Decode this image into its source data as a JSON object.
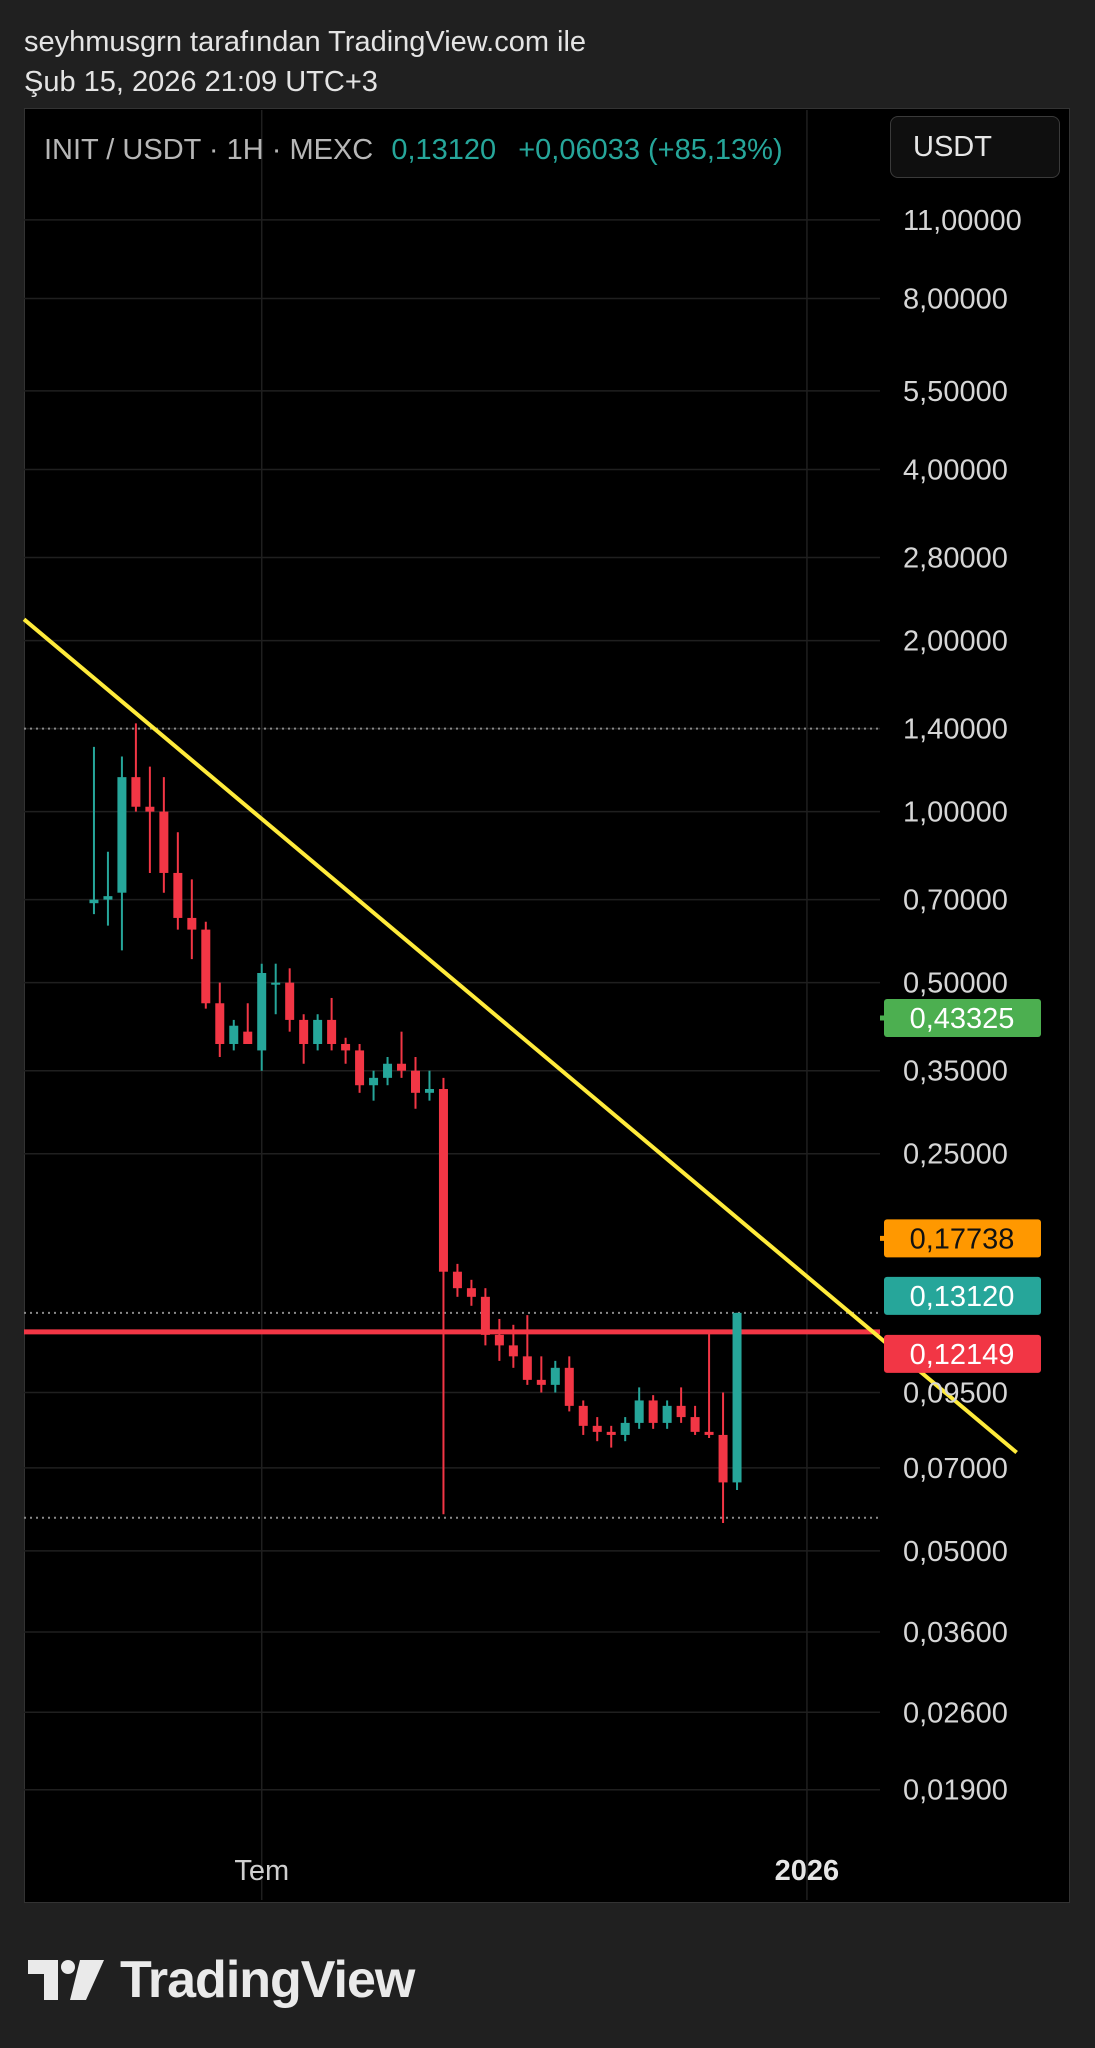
{
  "header": {
    "attribution": "seyhmusgrn tarafından TradingView.com ile",
    "datetime": "Şub 15, 2026 21:09 UTC+3"
  },
  "symbol_bar": {
    "symbol": "INIT / USDT · 1H · MEXC",
    "last_price": "0,13120",
    "change": "+0,06033 (+85,13%)"
  },
  "currency_button": "USDT",
  "footer": {
    "brand": "TradingView"
  },
  "colors": {
    "up": "#26a69a",
    "down": "#f23645",
    "trendline": "#ffeb3b",
    "target_green": "#4caf50",
    "target_orange": "#ff9800",
    "support_red": "#f23645",
    "background": "#000000",
    "grid": "#1f1f1f"
  },
  "chart_data": {
    "type": "candlestick",
    "y_scale": "log",
    "ylim": [
      0.0175,
      14.6
    ],
    "y_ticks": [
      "11,00000",
      "8,00000",
      "5,50000",
      "4,00000",
      "2,80000",
      "2,00000",
      "1,40000",
      "1,00000",
      "0,70000",
      "0,50000",
      "0,35000",
      "0,25000",
      "0,09500",
      "0,07000",
      "0,05000",
      "0,03600",
      "0,02600",
      "0,01900"
    ],
    "x_labels": [
      {
        "text": "Tem",
        "index": 14
      },
      {
        "text": "2026",
        "index": 53
      }
    ],
    "candles": [
      {
        "o": 0.69,
        "h": 1.3,
        "l": 0.66,
        "c": 0.7
      },
      {
        "o": 0.7,
        "h": 0.85,
        "l": 0.63,
        "c": 0.71
      },
      {
        "o": 0.72,
        "h": 1.25,
        "l": 0.57,
        "c": 1.15
      },
      {
        "o": 1.15,
        "h": 1.43,
        "l": 1.0,
        "c": 1.02
      },
      {
        "o": 1.02,
        "h": 1.2,
        "l": 0.78,
        "c": 1.0
      },
      {
        "o": 1.0,
        "h": 1.15,
        "l": 0.72,
        "c": 0.78
      },
      {
        "o": 0.78,
        "h": 0.92,
        "l": 0.62,
        "c": 0.65
      },
      {
        "o": 0.65,
        "h": 0.76,
        "l": 0.55,
        "c": 0.62
      },
      {
        "o": 0.62,
        "h": 0.64,
        "l": 0.45,
        "c": 0.46
      },
      {
        "o": 0.46,
        "h": 0.5,
        "l": 0.37,
        "c": 0.39
      },
      {
        "o": 0.39,
        "h": 0.43,
        "l": 0.38,
        "c": 0.42
      },
      {
        "o": 0.41,
        "h": 0.46,
        "l": 0.39,
        "c": 0.39
      },
      {
        "o": 0.38,
        "h": 0.54,
        "l": 0.35,
        "c": 0.52
      },
      {
        "o": 0.5,
        "h": 0.54,
        "l": 0.44,
        "c": 0.5
      },
      {
        "o": 0.5,
        "h": 0.53,
        "l": 0.41,
        "c": 0.43
      },
      {
        "o": 0.43,
        "h": 0.44,
        "l": 0.36,
        "c": 0.39
      },
      {
        "o": 0.39,
        "h": 0.44,
        "l": 0.38,
        "c": 0.43
      },
      {
        "o": 0.43,
        "h": 0.47,
        "l": 0.38,
        "c": 0.39
      },
      {
        "o": 0.39,
        "h": 0.4,
        "l": 0.36,
        "c": 0.38
      },
      {
        "o": 0.38,
        "h": 0.39,
        "l": 0.32,
        "c": 0.33
      },
      {
        "o": 0.33,
        "h": 0.35,
        "l": 0.31,
        "c": 0.34
      },
      {
        "o": 0.34,
        "h": 0.37,
        "l": 0.33,
        "c": 0.36
      },
      {
        "o": 0.36,
        "h": 0.41,
        "l": 0.34,
        "c": 0.35
      },
      {
        "o": 0.35,
        "h": 0.37,
        "l": 0.3,
        "c": 0.32
      },
      {
        "o": 0.32,
        "h": 0.35,
        "l": 0.31,
        "c": 0.325
      },
      {
        "o": 0.325,
        "h": 0.34,
        "l": 0.058,
        "c": 0.155
      },
      {
        "o": 0.155,
        "h": 0.16,
        "l": 0.14,
        "c": 0.145
      },
      {
        "o": 0.145,
        "h": 0.15,
        "l": 0.135,
        "c": 0.14
      },
      {
        "o": 0.14,
        "h": 0.145,
        "l": 0.115,
        "c": 0.12
      },
      {
        "o": 0.12,
        "h": 0.128,
        "l": 0.108,
        "c": 0.115
      },
      {
        "o": 0.115,
        "h": 0.125,
        "l": 0.105,
        "c": 0.11
      },
      {
        "o": 0.11,
        "h": 0.13,
        "l": 0.098,
        "c": 0.1
      },
      {
        "o": 0.1,
        "h": 0.11,
        "l": 0.095,
        "c": 0.098
      },
      {
        "o": 0.098,
        "h": 0.108,
        "l": 0.095,
        "c": 0.105
      },
      {
        "o": 0.105,
        "h": 0.11,
        "l": 0.088,
        "c": 0.09
      },
      {
        "o": 0.09,
        "h": 0.092,
        "l": 0.08,
        "c": 0.083
      },
      {
        "o": 0.083,
        "h": 0.086,
        "l": 0.078,
        "c": 0.081
      },
      {
        "o": 0.081,
        "h": 0.083,
        "l": 0.076,
        "c": 0.08
      },
      {
        "o": 0.08,
        "h": 0.086,
        "l": 0.078,
        "c": 0.084
      },
      {
        "o": 0.084,
        "h": 0.097,
        "l": 0.082,
        "c": 0.092
      },
      {
        "o": 0.092,
        "h": 0.094,
        "l": 0.082,
        "c": 0.084
      },
      {
        "o": 0.084,
        "h": 0.092,
        "l": 0.082,
        "c": 0.09
      },
      {
        "o": 0.09,
        "h": 0.097,
        "l": 0.084,
        "c": 0.086
      },
      {
        "o": 0.086,
        "h": 0.09,
        "l": 0.08,
        "c": 0.081
      },
      {
        "o": 0.081,
        "h": 0.122,
        "l": 0.079,
        "c": 0.08
      },
      {
        "o": 0.08,
        "h": 0.095,
        "l": 0.056,
        "c": 0.066
      },
      {
        "o": 0.066,
        "h": 0.1312,
        "l": 0.064,
        "c": 0.1312
      }
    ],
    "candle_index_offset": 2,
    "horizontal_levels": [
      {
        "price": 1.4,
        "style": "dotted",
        "color": "#8a8a8a",
        "label": ""
      },
      {
        "price": 0.1312,
        "style": "dotted",
        "color": "#8a8a8a",
        "label": "0,13120",
        "label_color": "#26a69a"
      },
      {
        "price": 0.0572,
        "style": "dotted",
        "color": "#8a8a8a",
        "label": ""
      },
      {
        "price": 0.12149,
        "style": "solid",
        "color": "#f23645",
        "label": "0,12149",
        "label_color": "#f23645"
      }
    ],
    "target_lines": [
      {
        "price": 0.43325,
        "label": "0,43325",
        "color": "#4caf50",
        "x_from": 62
      },
      {
        "price": 0.17738,
        "label": "0,17738",
        "color": "#ff9800",
        "x_from": 62
      }
    ],
    "trendline": {
      "from": {
        "index": 0,
        "price": 2.18
      },
      "to": {
        "index": 68,
        "price": 0.0745
      }
    }
  }
}
